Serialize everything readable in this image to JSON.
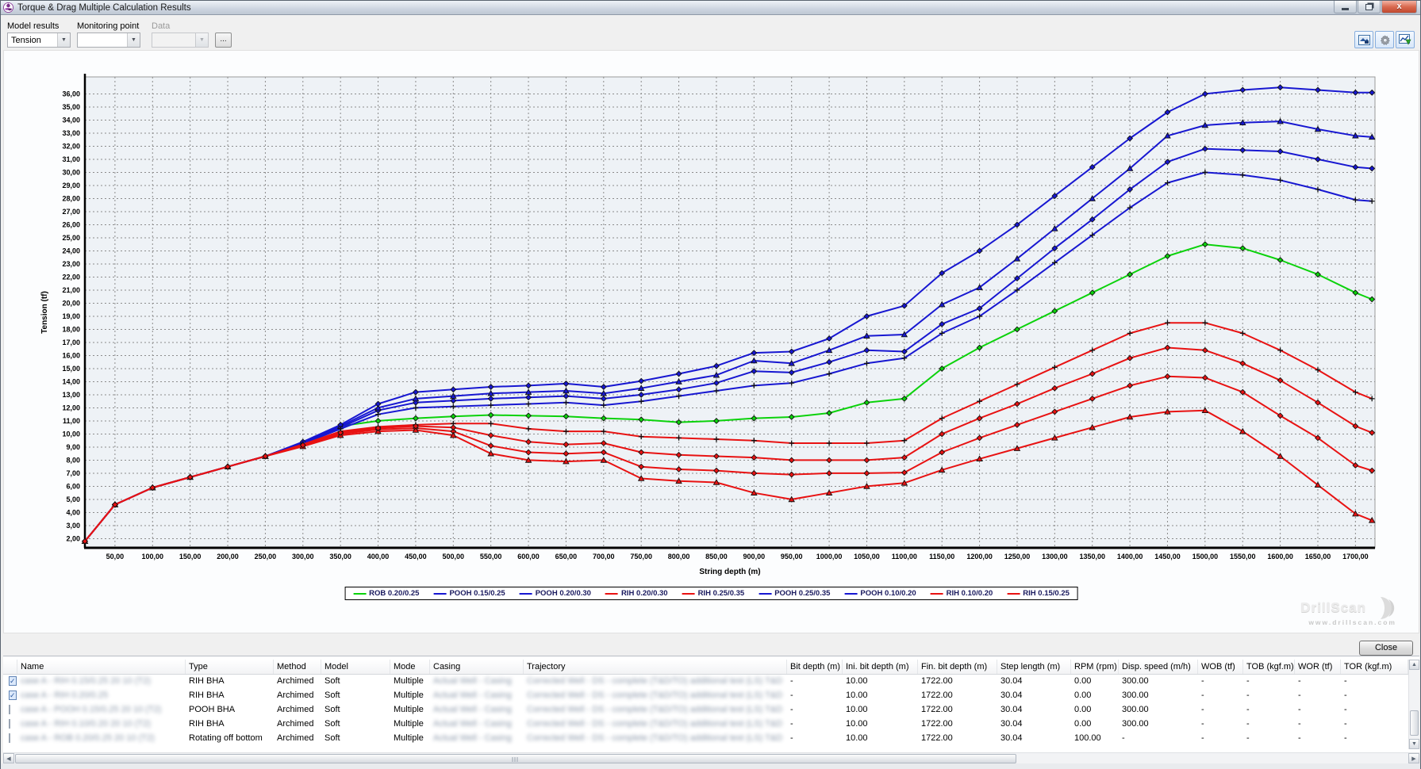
{
  "window": {
    "title": "Torque & Drag Multiple Calculation Results",
    "close_glyph": "x"
  },
  "toolbar": {
    "model_results_label": "Model results",
    "model_results_value": "Tension",
    "monitoring_point_label": "Monitoring point",
    "monitoring_point_value": "",
    "data_label": "Data",
    "data_value": "",
    "browse_button_label": "...",
    "icons": [
      "export-image-icon",
      "settings-gear-icon",
      "export-chart-icon"
    ]
  },
  "chart_data": {
    "type": "line",
    "title": "",
    "xlabel": "String depth (m)",
    "ylabel": "Tension (tf)",
    "xlim": [
      10,
      1726
    ],
    "ylim": [
      1.3,
      37.3
    ],
    "x_ticks": {
      "min": 50,
      "max": 1700,
      "step": 50
    },
    "y_ticks": {
      "min": 2,
      "max": 36,
      "step": 1
    },
    "tick_label_format": "decimal-comma, two places (e.g. 1050,00)",
    "grid": "dashed",
    "legend_position": "bottom",
    "x": [
      10,
      50,
      100,
      150,
      200,
      250,
      300,
      350,
      400,
      450,
      500,
      550,
      600,
      650,
      700,
      750,
      800,
      850,
      900,
      950,
      1000,
      1050,
      1100,
      1150,
      1200,
      1250,
      1300,
      1350,
      1400,
      1450,
      1500,
      1550,
      1600,
      1650,
      1700,
      1722
    ],
    "series": [
      {
        "name": "ROB 0.20/0.25",
        "color": "#0bd20b",
        "marker": "diamond",
        "values": [
          1.8,
          4.6,
          5.9,
          6.7,
          7.5,
          8.3,
          9.3,
          10.6,
          11.0,
          11.2,
          11.35,
          11.45,
          11.4,
          11.35,
          11.2,
          11.1,
          10.9,
          11.0,
          11.2,
          11.3,
          11.6,
          12.4,
          12.7,
          15.0,
          16.6,
          18.0,
          19.4,
          20.8,
          22.2,
          23.6,
          24.5,
          24.2,
          23.3,
          22.2,
          20.8,
          20.3
        ]
      },
      {
        "name": "POOH 0.15/0.25",
        "color": "#1717d1",
        "marker": "diamond",
        "values": [
          1.8,
          4.6,
          5.9,
          6.7,
          7.5,
          8.3,
          9.3,
          10.5,
          11.8,
          12.4,
          12.55,
          12.7,
          12.8,
          12.9,
          12.7,
          13.0,
          13.4,
          13.9,
          14.8,
          14.7,
          15.5,
          16.4,
          16.3,
          18.4,
          19.6,
          21.9,
          24.2,
          26.4,
          28.7,
          30.8,
          31.8,
          31.7,
          31.6,
          31.0,
          30.4,
          30.3
        ]
      },
      {
        "name": "POOH 0.20/0.30",
        "color": "#1717d1",
        "marker": "triangle",
        "values": [
          1.8,
          4.6,
          5.9,
          6.7,
          7.5,
          8.3,
          9.35,
          10.6,
          12.0,
          12.7,
          12.9,
          13.1,
          13.2,
          13.3,
          13.1,
          13.5,
          14.0,
          14.5,
          15.6,
          15.4,
          16.4,
          17.5,
          17.6,
          19.9,
          21.2,
          23.4,
          25.7,
          28.0,
          30.3,
          32.8,
          33.6,
          33.8,
          33.9,
          33.3,
          32.8,
          32.7
        ]
      },
      {
        "name": "RIH 0.20/0.30",
        "color": "#e81212",
        "marker": "diamond",
        "values": [
          1.8,
          4.6,
          5.9,
          6.7,
          7.5,
          8.3,
          9.1,
          10.0,
          10.35,
          10.45,
          10.2,
          9.1,
          8.6,
          8.5,
          8.6,
          7.5,
          7.3,
          7.2,
          7.0,
          6.9,
          7.0,
          7.0,
          7.05,
          8.6,
          9.7,
          10.7,
          11.7,
          12.7,
          13.7,
          14.4,
          14.3,
          13.2,
          11.4,
          9.7,
          7.6,
          7.2
        ]
      },
      {
        "name": "RIH 0.25/0.35",
        "color": "#e81212",
        "marker": "triangle",
        "values": [
          1.8,
          4.6,
          5.9,
          6.7,
          7.5,
          8.3,
          9.05,
          9.9,
          10.2,
          10.3,
          9.9,
          8.5,
          8.0,
          7.9,
          8.0,
          6.6,
          6.4,
          6.3,
          5.5,
          5.0,
          5.5,
          6.0,
          6.25,
          7.25,
          8.1,
          8.9,
          9.7,
          10.5,
          11.3,
          11.7,
          11.8,
          10.2,
          8.3,
          6.1,
          3.9,
          3.4
        ]
      },
      {
        "name": "POOH 0.25/0.35",
        "color": "#1717d1",
        "marker": "diamond",
        "values": [
          1.8,
          4.6,
          5.9,
          6.7,
          7.5,
          8.3,
          9.4,
          10.7,
          12.3,
          13.2,
          13.4,
          13.6,
          13.7,
          13.85,
          13.6,
          14.05,
          14.6,
          15.2,
          16.2,
          16.3,
          17.3,
          19.0,
          19.8,
          22.3,
          24.0,
          26.0,
          28.2,
          30.4,
          32.6,
          34.6,
          36.0,
          36.3,
          36.5,
          36.3,
          36.1,
          36.1
        ]
      },
      {
        "name": "POOH 0.10/0.20",
        "color": "#1717d1",
        "marker": "plus",
        "values": [
          1.8,
          4.6,
          5.9,
          6.7,
          7.5,
          8.3,
          9.25,
          10.4,
          11.5,
          12.0,
          12.1,
          12.2,
          12.3,
          12.4,
          12.2,
          12.5,
          12.9,
          13.3,
          13.7,
          13.9,
          14.6,
          15.4,
          15.8,
          17.7,
          19.0,
          21.0,
          23.1,
          25.2,
          27.3,
          29.2,
          30.0,
          29.8,
          29.4,
          28.7,
          27.9,
          27.8
        ]
      },
      {
        "name": "RIH 0.10/0.20",
        "color": "#e81212",
        "marker": "plus",
        "values": [
          1.8,
          4.6,
          5.9,
          6.7,
          7.5,
          8.3,
          9.2,
          10.2,
          10.55,
          10.7,
          10.8,
          10.8,
          10.4,
          10.2,
          10.2,
          9.8,
          9.7,
          9.6,
          9.5,
          9.3,
          9.3,
          9.3,
          9.5,
          11.2,
          12.5,
          13.8,
          15.1,
          16.4,
          17.7,
          18.5,
          18.5,
          17.7,
          16.4,
          14.9,
          13.2,
          12.7
        ]
      },
      {
        "name": "RIH 0.15/0.25",
        "color": "#e81212",
        "marker": "diamond",
        "values": [
          1.8,
          4.6,
          5.9,
          6.7,
          7.5,
          8.3,
          9.15,
          10.1,
          10.45,
          10.6,
          10.5,
          9.9,
          9.4,
          9.2,
          9.3,
          8.6,
          8.4,
          8.3,
          8.2,
          8.0,
          8.0,
          8.0,
          8.2,
          10.0,
          11.2,
          12.3,
          13.5,
          14.6,
          15.8,
          16.6,
          16.4,
          15.4,
          14.1,
          12.4,
          10.6,
          10.1
        ]
      }
    ]
  },
  "watermark": {
    "brand": "DrillScan",
    "url": "www.drillscan.com"
  },
  "close_button_label": "Close",
  "table": {
    "columns": [
      "",
      "Name",
      "Type",
      "Method",
      "Model",
      "Mode",
      "Casing",
      "Trajectory",
      "Bit depth (m)",
      "Ini. bit depth (m)",
      "Fin. bit depth (m)",
      "Step length (m)",
      "RPM (rpm)",
      "Disp. speed (m/h)",
      "WOB (tf)",
      "TOB (kgf.m)",
      "WOR (tf)",
      "TOR (kgf.m)"
    ],
    "redacted_casing": "Actual Well - Casing",
    "redacted_trajectory": "Corrected Well - DS - complete (T&D/TO) additional test (LS) T&D",
    "rows": [
      {
        "checked": true,
        "name": "case A - RIH 0.15/0.25 20 10 (T2)",
        "type": "RIH BHA",
        "method": "Archimed",
        "model": "Soft",
        "mode": "Multiple",
        "bit_depth": "-",
        "ini_bit_depth": "10.00",
        "fin_bit_depth": "1722.00",
        "step_length": "30.04",
        "rpm": "0.00",
        "disp_speed": "300.00",
        "wob": "-",
        "tob": "-",
        "wor": "-",
        "tor": "-"
      },
      {
        "checked": true,
        "name": "case A - RIH 0.20/0.25",
        "type": "RIH BHA",
        "method": "Archimed",
        "model": "Soft",
        "mode": "Multiple",
        "bit_depth": "-",
        "ini_bit_depth": "10.00",
        "fin_bit_depth": "1722.00",
        "step_length": "30.04",
        "rpm": "0.00",
        "disp_speed": "300.00",
        "wob": "-",
        "tob": "-",
        "wor": "-",
        "tor": "-"
      },
      {
        "checked": false,
        "name": "case A - POOH 0.15/0.25 20 10 (T2)",
        "type": "POOH BHA",
        "method": "Archimed",
        "model": "Soft",
        "mode": "Multiple",
        "bit_depth": "-",
        "ini_bit_depth": "10.00",
        "fin_bit_depth": "1722.00",
        "step_length": "30.04",
        "rpm": "0.00",
        "disp_speed": "300.00",
        "wob": "-",
        "tob": "-",
        "wor": "-",
        "tor": "-"
      },
      {
        "checked": false,
        "name": "case A - RIH 0.10/0.20 20 10 (T2)",
        "type": "RIH BHA",
        "method": "Archimed",
        "model": "Soft",
        "mode": "Multiple",
        "bit_depth": "-",
        "ini_bit_depth": "10.00",
        "fin_bit_depth": "1722.00",
        "step_length": "30.04",
        "rpm": "0.00",
        "disp_speed": "300.00",
        "wob": "-",
        "tob": "-",
        "wor": "-",
        "tor": "-"
      },
      {
        "checked": false,
        "name": "case A - ROB 0.20/0.25 20 10 (T2)",
        "type": "Rotating off bottom",
        "method": "Archimed",
        "model": "Soft",
        "mode": "Multiple",
        "bit_depth": "-",
        "ini_bit_depth": "10.00",
        "fin_bit_depth": "1722.00",
        "step_length": "30.04",
        "rpm": "100.00",
        "disp_speed": "-",
        "wob": "-",
        "tob": "-",
        "wor": "-",
        "tor": "-"
      }
    ]
  }
}
